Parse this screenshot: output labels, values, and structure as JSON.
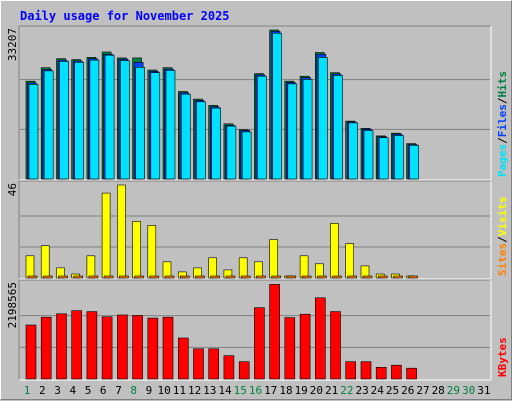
{
  "chart_data": {
    "type": "bar",
    "title": "Daily usage for November 2025",
    "days": [
      "1",
      "2",
      "3",
      "4",
      "5",
      "6",
      "7",
      "8",
      "9",
      "10",
      "11",
      "12",
      "13",
      "14",
      "15",
      "16",
      "17",
      "18",
      "19",
      "20",
      "21",
      "22",
      "23",
      "24",
      "25",
      "26",
      "27",
      "28",
      "29",
      "30",
      "31"
    ],
    "weekend_days": [
      1,
      8,
      15,
      16,
      22,
      29,
      30
    ],
    "panels": [
      {
        "id": "hits",
        "max_label": "33207",
        "ymax": 33207,
        "side_label": [
          "Pages",
          "/",
          "Files",
          "/",
          "Hits"
        ],
        "side_colors": [
          "#00e0ff",
          "#000000",
          "#0040ff",
          "#000000",
          "#008040"
        ],
        "series": [
          {
            "name": "Hits",
            "color": "#008040",
            "values": [
              21800,
              24800,
              26800,
              26600,
              27100,
              28300,
              27000,
              27000,
              24300,
              24800,
              19500,
              17800,
              16400,
              12300,
              11000,
              23500,
              33200,
              21800,
              22900,
              28200,
              23700,
              12900,
              11300,
              9600,
              10200,
              7900,
              0,
              0,
              0,
              0,
              0
            ]
          },
          {
            "name": "Files",
            "color": "#0040ff",
            "values": [
              21400,
              24400,
              26500,
              26300,
              26800,
              27800,
              26700,
              26000,
              24000,
              24500,
              19200,
              17500,
              16100,
              12000,
              10800,
              23200,
              32900,
              21500,
              22600,
              27800,
              23400,
              12700,
              11100,
              9400,
              10000,
              7700,
              0,
              0,
              0,
              0,
              0
            ]
          },
          {
            "name": "Pages",
            "color": "#00e0ff",
            "values": [
              21100,
              24100,
              26200,
              26000,
              26500,
              27600,
              26400,
              24900,
              23700,
              24200,
              18900,
              17200,
              15800,
              11800,
              10500,
              22900,
              32500,
              21200,
              22200,
              27100,
              23100,
              12500,
              10800,
              9200,
              9700,
              7500,
              0,
              0,
              0,
              0,
              0
            ]
          }
        ]
      },
      {
        "id": "visits",
        "max_label": "46",
        "ymax": 46,
        "side_label": [
          "Sites",
          "/",
          "Visits"
        ],
        "side_colors": [
          "#ff8000",
          "#000000",
          "#ffff00"
        ],
        "series": [
          {
            "name": "Visits",
            "color": "#ffff00",
            "values": [
              11,
              16,
              5,
              2,
              11,
              42,
              46,
              28,
              26,
              8,
              3,
              5,
              10,
              4,
              10,
              8,
              19,
              1,
              11,
              7,
              27,
              17,
              6,
              2,
              2,
              1,
              0,
              0,
              0,
              0,
              0
            ]
          },
          {
            "name": "Sites",
            "color": "#ff8000",
            "values": [
              1,
              1,
              1,
              1,
              1,
              1,
              1,
              1,
              1,
              1,
              1,
              1,
              1,
              1,
              1,
              1,
              1,
              1,
              1,
              1,
              1,
              1,
              1,
              1,
              1,
              1,
              0,
              0,
              0,
              0,
              0
            ]
          }
        ]
      },
      {
        "id": "kbytes",
        "max_label": "2198565",
        "ymax": 2198565,
        "side_label": [
          "KBytes"
        ],
        "side_colors": [
          "#ff0000"
        ],
        "series": [
          {
            "name": "KBytes",
            "color": "#ff0000",
            "values": [
              1250000,
              1430000,
              1510000,
              1580000,
              1560000,
              1440000,
              1480000,
              1470000,
              1410000,
              1430000,
              950000,
              700000,
              700000,
              540000,
              400000,
              1650000,
              2190000,
              1420000,
              1500000,
              1880000,
              1560000,
              400000,
              400000,
              270000,
              320000,
              250000,
              0,
              0,
              0,
              0,
              0
            ]
          }
        ]
      }
    ]
  }
}
